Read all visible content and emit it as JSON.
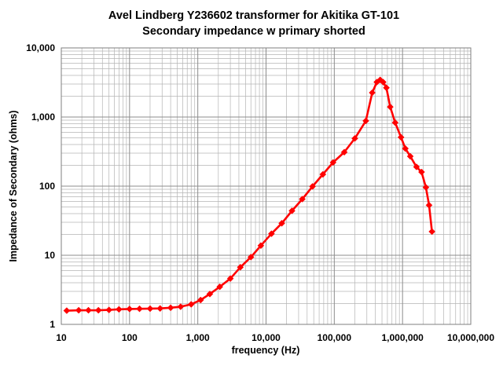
{
  "chart_data": {
    "type": "line",
    "title": "Avel Lindberg Y236602 transformer for Akitika GT-101",
    "subtitle": "Secondary impedance w primary shorted",
    "xlabel": "frequency (Hz)",
    "ylabel": "Impedance  of  Secondary  (ohms)",
    "x_scale": "log",
    "y_scale": "log",
    "xlim": [
      10,
      10000000
    ],
    "ylim": [
      1,
      10000
    ],
    "x_ticks": [
      10,
      100,
      1000,
      10000,
      100000,
      1000000,
      10000000
    ],
    "x_tick_labels": [
      "10",
      "100",
      "1,000",
      "10,000",
      "100,000",
      "1,000,000",
      "10,000,000"
    ],
    "y_ticks": [
      1,
      10,
      100,
      1000,
      10000
    ],
    "y_tick_labels": [
      "1",
      "10",
      "100",
      "1,000",
      "10,000"
    ],
    "grid": true,
    "legend": "none",
    "series_color": "#ff0000",
    "marker": "diamond",
    "series": [
      {
        "x": [
          12,
          18,
          25,
          35,
          50,
          70,
          100,
          140,
          200,
          280,
          400,
          560,
          800,
          1100,
          1500,
          2100,
          3000,
          4200,
          6000,
          8400,
          12000,
          17000,
          24000,
          34000,
          48000,
          68000,
          96000,
          140000,
          200000,
          290000,
          360000,
          420000,
          470000,
          520000,
          580000,
          660000,
          780000,
          950000,
          1100000,
          1300000,
          1600000,
          1900000,
          2200000,
          2450000,
          2700000
        ],
        "y": [
          1.58,
          1.6,
          1.6,
          1.6,
          1.62,
          1.65,
          1.67,
          1.68,
          1.69,
          1.7,
          1.74,
          1.8,
          1.95,
          2.25,
          2.75,
          3.5,
          4.6,
          6.7,
          9.4,
          13.8,
          20.5,
          29,
          44,
          65,
          99,
          148,
          220,
          310,
          490,
          880,
          2250,
          3200,
          3450,
          3200,
          2650,
          1400,
          830,
          510,
          350,
          270,
          190,
          160,
          96,
          53,
          22
        ]
      }
    ]
  }
}
